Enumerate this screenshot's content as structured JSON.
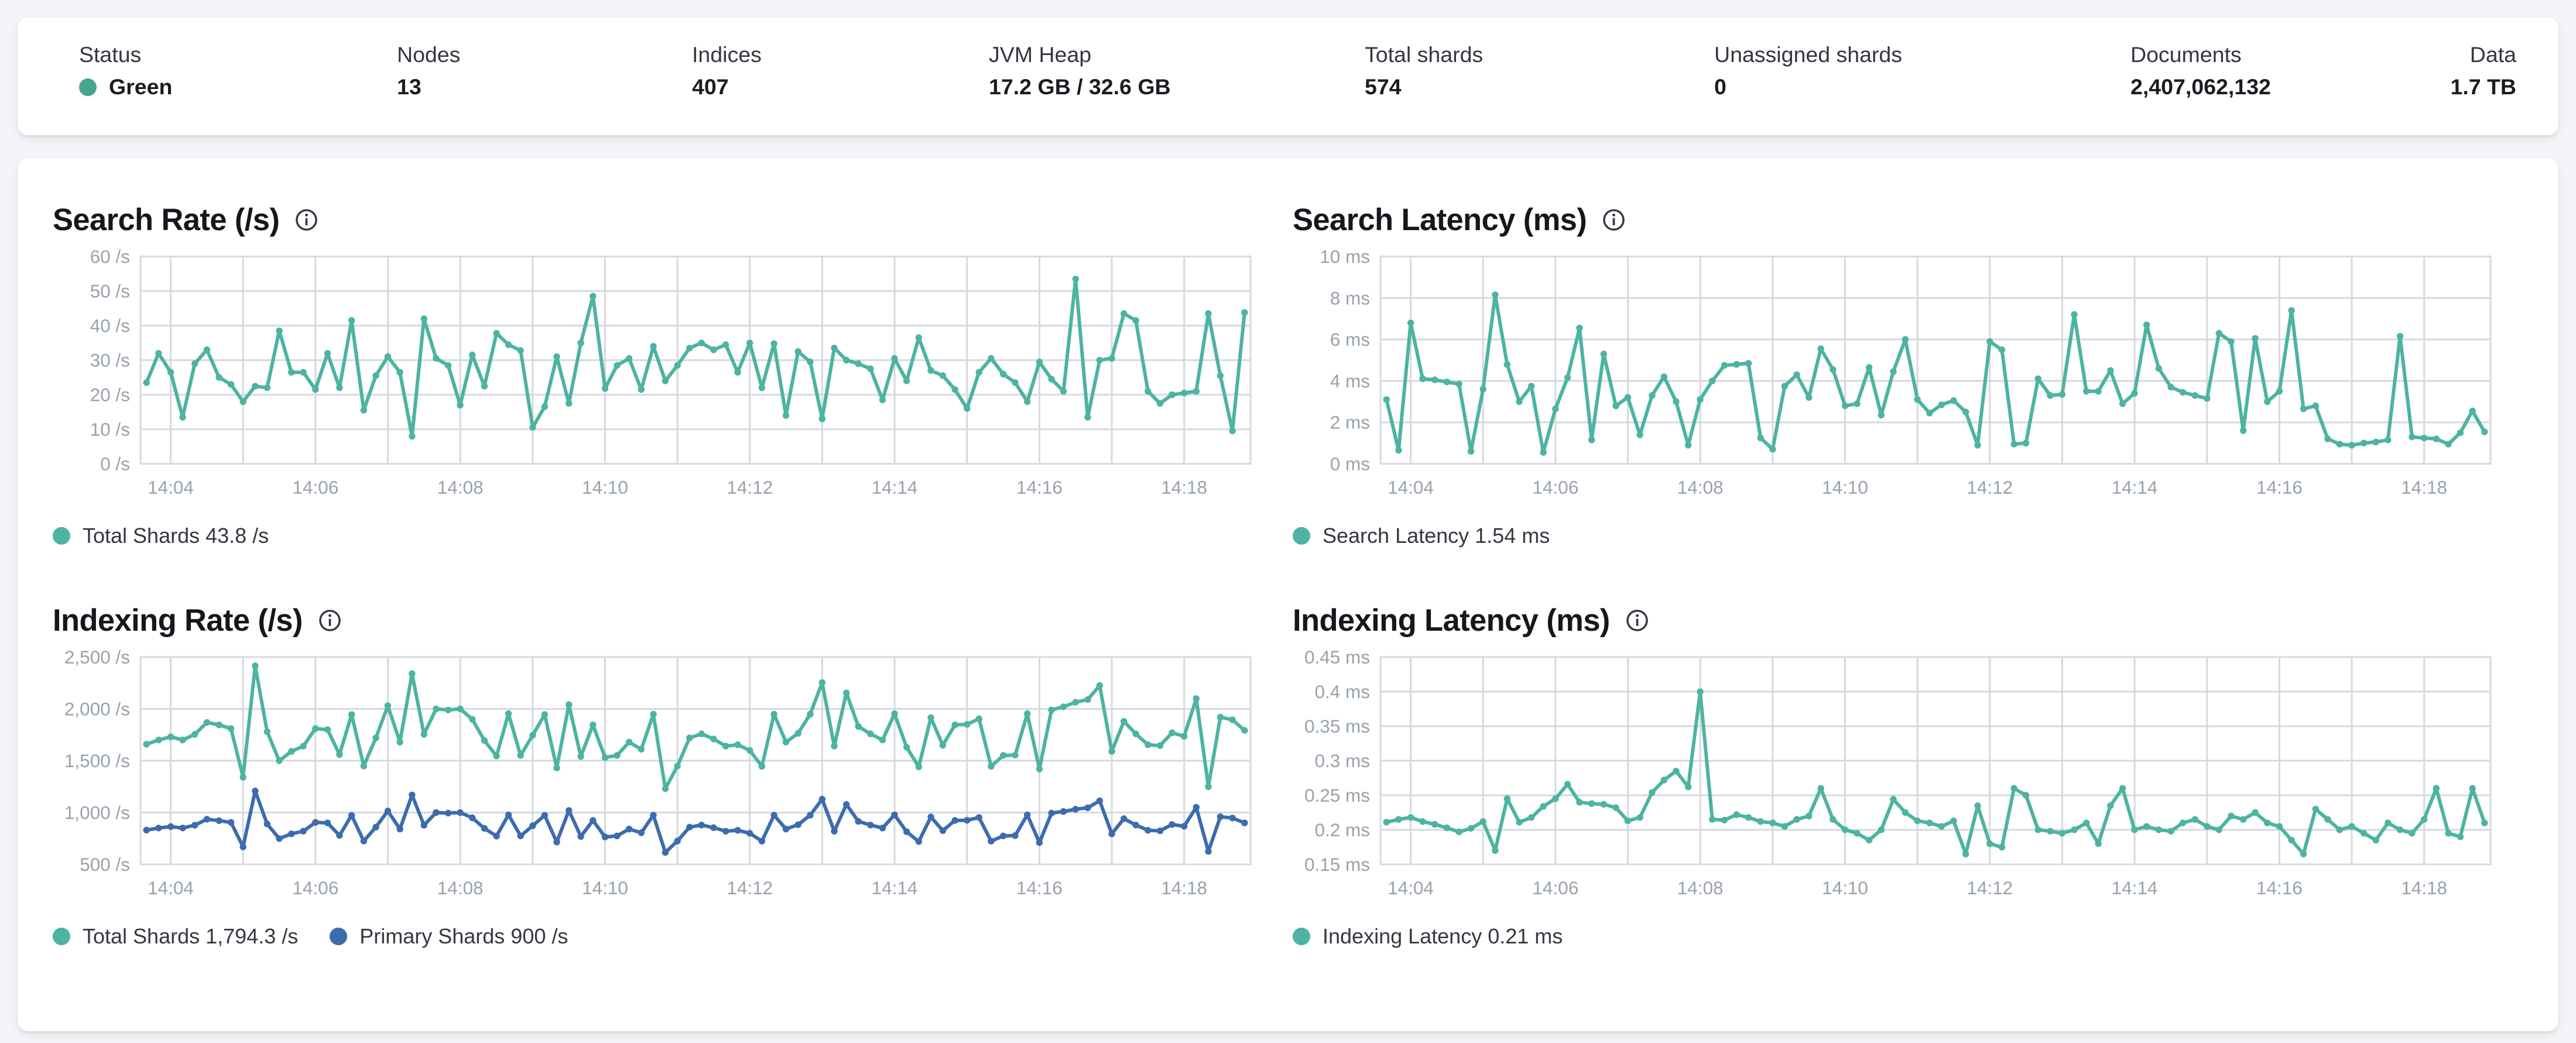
{
  "status_bar": {
    "status_color": "#45a58f",
    "items": [
      {
        "label": "Status",
        "value": "Green"
      },
      {
        "label": "Nodes",
        "value": "13"
      },
      {
        "label": "Indices",
        "value": "407"
      },
      {
        "label": "JVM Heap",
        "value": "17.2 GB / 32.6 GB"
      },
      {
        "label": "Total shards",
        "value": "574"
      },
      {
        "label": "Unassigned shards",
        "value": "0"
      },
      {
        "label": "Documents",
        "value": "2,407,062,132"
      },
      {
        "label": "Data",
        "value": "1.7 TB"
      }
    ]
  },
  "icons": {
    "info": "i"
  },
  "x_axis": {
    "grid_sec": [
      240,
      300,
      360,
      420,
      480,
      540,
      600,
      660,
      720,
      780,
      840,
      900,
      960,
      1020,
      1080
    ],
    "labels": [
      {
        "sec": 240,
        "text": "14:04"
      },
      {
        "sec": 360,
        "text": "14:06"
      },
      {
        "sec": 480,
        "text": "14:08"
      },
      {
        "sec": 600,
        "text": "14:10"
      },
      {
        "sec": 720,
        "text": "14:12"
      },
      {
        "sec": 840,
        "text": "14:14"
      },
      {
        "sec": 960,
        "text": "14:16"
      },
      {
        "sec": 1080,
        "text": "14:18"
      }
    ],
    "domain": [
      215,
      1135
    ]
  },
  "chart_data": [
    {
      "id": "search-rate",
      "type": "line",
      "title": "Search Rate (/s)",
      "unit": "/s",
      "ylim": [
        0,
        60
      ],
      "y_ticks": [
        {
          "v": 0,
          "label": "0 /s"
        },
        {
          "v": 10,
          "label": "10 /s"
        },
        {
          "v": 20,
          "label": "20 /s"
        },
        {
          "v": 30,
          "label": "30 /s"
        },
        {
          "v": 40,
          "label": "40 /s"
        },
        {
          "v": 50,
          "label": "50 /s"
        },
        {
          "v": 60,
          "label": "60 /s"
        }
      ],
      "x_start": 220,
      "x_step": 10,
      "legend": [
        {
          "label": "Total Shards 43.8 /s"
        }
      ],
      "series": [
        {
          "name": "Total Shards",
          "color": "#4db3a2",
          "current": "43.8 /s",
          "values": [
            23.5,
            32,
            26.5,
            13.5,
            29,
            33,
            25,
            23,
            18,
            22.5,
            22,
            38.5,
            26.5,
            26.5,
            21.5,
            32,
            22,
            41.5,
            15.5,
            25.5,
            31,
            26.5,
            8,
            42,
            30.5,
            28.5,
            17,
            31.5,
            22.5,
            37.8,
            34.5,
            32.8,
            10.5,
            16.5,
            31,
            17.5,
            35,
            48.5,
            21.8,
            28.5,
            30.5,
            21.5,
            34,
            24,
            28.5,
            33.5,
            35,
            33,
            34.5,
            26.5,
            35,
            22,
            34.8,
            14,
            32.5,
            29.5,
            13,
            33.5,
            30,
            29,
            27.5,
            18.5,
            30.5,
            24,
            36.5,
            27,
            25.5,
            21.5,
            16,
            26.5,
            30.5,
            26,
            23.5,
            18,
            29.5,
            24.5,
            21,
            53.5,
            13.5,
            30,
            30.5,
            43.5,
            41.5,
            21,
            17.5,
            20,
            20.5,
            21,
            43.5,
            25.5,
            9.5,
            43.8
          ]
        }
      ]
    },
    {
      "id": "search-latency",
      "type": "line",
      "title": "Search Latency (ms)",
      "unit": "ms",
      "ylim": [
        0,
        10
      ],
      "y_ticks": [
        {
          "v": 0,
          "label": "0 ms"
        },
        {
          "v": 2,
          "label": "2 ms"
        },
        {
          "v": 4,
          "label": "4 ms"
        },
        {
          "v": 6,
          "label": "6 ms"
        },
        {
          "v": 8,
          "label": "8 ms"
        },
        {
          "v": 10,
          "label": "10 ms"
        }
      ],
      "x_start": 220,
      "x_step": 10,
      "legend": [
        {
          "label": "Search Latency 1.54 ms"
        }
      ],
      "series": [
        {
          "name": "Search Latency",
          "color": "#4db3a2",
          "current": "1.54 ms",
          "values": [
            3.1,
            0.65,
            6.8,
            4.1,
            4.05,
            3.95,
            3.85,
            0.6,
            3.6,
            8.15,
            4.8,
            3.0,
            3.75,
            0.55,
            2.65,
            4.15,
            6.55,
            1.15,
            5.3,
            2.8,
            3.2,
            1.4,
            3.3,
            4.2,
            3.0,
            0.9,
            3.1,
            4.0,
            4.75,
            4.8,
            4.85,
            1.25,
            0.7,
            3.75,
            4.3,
            3.2,
            5.55,
            4.55,
            2.8,
            2.9,
            4.65,
            2.35,
            4.45,
            6.0,
            3.1,
            2.45,
            2.85,
            3.05,
            2.5,
            0.9,
            5.9,
            5.5,
            0.95,
            1.0,
            4.1,
            3.3,
            3.35,
            7.2,
            3.5,
            3.5,
            4.5,
            2.9,
            3.4,
            6.7,
            4.6,
            3.7,
            3.45,
            3.3,
            3.15,
            6.3,
            5.9,
            1.6,
            6.05,
            3.0,
            3.5,
            7.4,
            2.65,
            2.8,
            1.2,
            0.95,
            0.9,
            1.0,
            1.05,
            1.15,
            6.15,
            1.3,
            1.25,
            1.2,
            0.95,
            1.5,
            2.55,
            1.54
          ]
        }
      ]
    },
    {
      "id": "indexing-rate",
      "type": "line",
      "title": "Indexing Rate (/s)",
      "unit": "/s",
      "ylim": [
        500,
        2500
      ],
      "y_ticks": [
        {
          "v": 500,
          "label": "500 /s"
        },
        {
          "v": 1000,
          "label": "1,000 /s"
        },
        {
          "v": 1500,
          "label": "1,500 /s"
        },
        {
          "v": 2000,
          "label": "2,000 /s"
        },
        {
          "v": 2500,
          "label": "2,500 /s"
        }
      ],
      "x_start": 220,
      "x_step": 10,
      "legend": [
        {
          "label": "Total Shards 1,794.3 /s"
        },
        {
          "label": "Primary Shards 900 /s"
        }
      ],
      "series": [
        {
          "name": "Total Shards",
          "color": "#4db3a2",
          "current": "1,794.3 /s",
          "values": [
            1660,
            1700,
            1730,
            1700,
            1755,
            1870,
            1845,
            1810,
            1340,
            2415,
            1780,
            1500,
            1590,
            1640,
            1810,
            1800,
            1560,
            1945,
            1450,
            1720,
            2030,
            1680,
            2340,
            1755,
            2000,
            1990,
            2000,
            1900,
            1695,
            1545,
            1955,
            1550,
            1745,
            1945,
            1430,
            2040,
            1540,
            1845,
            1530,
            1550,
            1680,
            1610,
            1950,
            1230,
            1450,
            1720,
            1760,
            1710,
            1640,
            1655,
            1600,
            1445,
            1950,
            1680,
            1765,
            1950,
            2255,
            1640,
            2155,
            1830,
            1760,
            1700,
            1955,
            1630,
            1440,
            1915,
            1650,
            1845,
            1850,
            1905,
            1445,
            1550,
            1555,
            1955,
            1420,
            1990,
            2020,
            2065,
            2090,
            2225,
            1590,
            1880,
            1760,
            1655,
            1645,
            1770,
            1735,
            2100,
            1250,
            1920,
            1895,
            1794
          ]
        },
        {
          "name": "Primary Shards",
          "color": "#3c6cad",
          "current": "900 /s",
          "values": [
            830,
            850,
            865,
            850,
            878,
            935,
            922,
            905,
            670,
            1208,
            890,
            750,
            795,
            820,
            905,
            900,
            780,
            973,
            725,
            860,
            1015,
            840,
            1170,
            878,
            1000,
            995,
            1000,
            950,
            848,
            773,
            978,
            775,
            873,
            973,
            715,
            1020,
            770,
            923,
            765,
            775,
            840,
            805,
            975,
            615,
            725,
            860,
            880,
            855,
            820,
            828,
            800,
            723,
            975,
            840,
            883,
            975,
            1128,
            820,
            1078,
            915,
            880,
            850,
            978,
            815,
            720,
            958,
            825,
            923,
            925,
            953,
            723,
            775,
            778,
            978,
            710,
            995,
            1010,
            1033,
            1045,
            1113,
            795,
            940,
            880,
            828,
            823,
            885,
            868,
            1050,
            625,
            960,
            948,
            900
          ]
        }
      ]
    },
    {
      "id": "indexing-latency",
      "type": "line",
      "title": "Indexing Latency (ms)",
      "unit": "ms",
      "ylim": [
        0.15,
        0.45
      ],
      "y_ticks": [
        {
          "v": 0.15,
          "label": "0.15 ms"
        },
        {
          "v": 0.2,
          "label": "0.2 ms"
        },
        {
          "v": 0.25,
          "label": "0.25 ms"
        },
        {
          "v": 0.3,
          "label": "0.3 ms"
        },
        {
          "v": 0.35,
          "label": "0.35 ms"
        },
        {
          "v": 0.4,
          "label": "0.4 ms"
        },
        {
          "v": 0.45,
          "label": "0.45 ms"
        }
      ],
      "x_start": 220,
      "x_step": 10,
      "legend": [
        {
          "label": "Indexing Latency 0.21 ms"
        }
      ],
      "series": [
        {
          "name": "Indexing Latency",
          "color": "#4db3a2",
          "current": "0.21 ms",
          "values": [
            0.211,
            0.215,
            0.218,
            0.212,
            0.208,
            0.203,
            0.197,
            0.202,
            0.212,
            0.17,
            0.245,
            0.211,
            0.218,
            0.234,
            0.245,
            0.266,
            0.24,
            0.238,
            0.237,
            0.232,
            0.213,
            0.218,
            0.254,
            0.272,
            0.285,
            0.262,
            0.4,
            0.215,
            0.214,
            0.222,
            0.218,
            0.212,
            0.21,
            0.205,
            0.215,
            0.22,
            0.26,
            0.215,
            0.2,
            0.195,
            0.185,
            0.2,
            0.244,
            0.225,
            0.213,
            0.21,
            0.205,
            0.213,
            0.165,
            0.235,
            0.18,
            0.175,
            0.26,
            0.25,
            0.2,
            0.198,
            0.195,
            0.2,
            0.21,
            0.18,
            0.235,
            0.26,
            0.2,
            0.205,
            0.2,
            0.198,
            0.21,
            0.215,
            0.205,
            0.2,
            0.22,
            0.215,
            0.225,
            0.21,
            0.205,
            0.185,
            0.165,
            0.23,
            0.215,
            0.2,
            0.205,
            0.195,
            0.185,
            0.21,
            0.2,
            0.195,
            0.215,
            0.26,
            0.195,
            0.19,
            0.26,
            0.21
          ]
        }
      ]
    }
  ]
}
